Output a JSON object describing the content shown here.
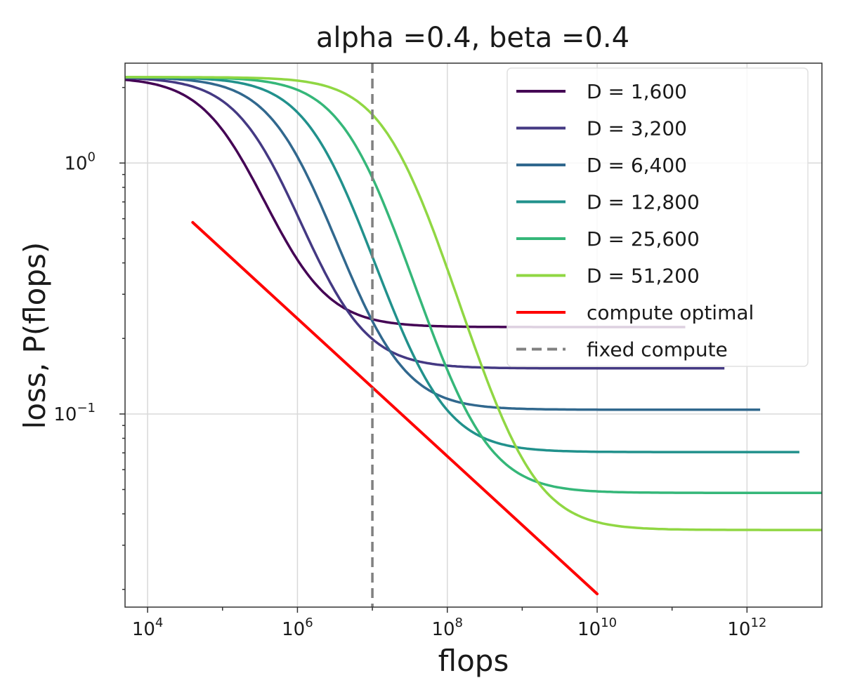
{
  "chart_data": {
    "type": "line",
    "title": "alpha =0.4, beta =0.4",
    "xlabel": "flops",
    "ylabel": "loss, P(flops)",
    "xscale": "log",
    "yscale": "log",
    "xlim": [
      5000,
      10000000000000
    ],
    "ylim": [
      0.017,
      2.5
    ],
    "x_tick_labels": [
      {
        "exp": "4",
        "value": 10000
      },
      {
        "exp": "6",
        "value": 1000000
      },
      {
        "exp": "8",
        "value": 100000000
      },
      {
        "exp": "10",
        "value": 10000000000
      },
      {
        "exp": "12",
        "value": 1000000000000
      }
    ],
    "y_tick_labels": [
      {
        "exp": "0",
        "value": 1
      },
      {
        "exp": "−1",
        "value": 0.1
      }
    ],
    "grid": true,
    "legend_position": "top-right",
    "series": [
      {
        "name": "D = 1,600",
        "color": "#440154",
        "x_start": 5000,
        "x_end": 150000000000,
        "plateau_high": 2.2,
        "plateau_low": 0.222,
        "transition_center": 130000,
        "width": 1.1
      },
      {
        "name": "D = 3,200",
        "color": "#443983",
        "x_start": 5000,
        "x_end": 500000000000,
        "plateau_high": 2.2,
        "plateau_low": 0.152,
        "transition_center": 330000,
        "width": 1.1
      },
      {
        "name": "D = 6,400",
        "color": "#31688e",
        "x_start": 5000,
        "x_end": 1500000000000,
        "plateau_high": 2.2,
        "plateau_low": 0.104,
        "transition_center": 850000,
        "width": 1.1
      },
      {
        "name": "D = 12,800",
        "color": "#21918c",
        "x_start": 5000,
        "x_end": 5000000000000,
        "plateau_high": 2.2,
        "plateau_low": 0.0705,
        "transition_center": 2300000,
        "width": 1.1
      },
      {
        "name": "D = 25,600",
        "color": "#35b779",
        "x_start": 5000,
        "x_end": 15000000000000,
        "plateau_high": 2.2,
        "plateau_low": 0.0485,
        "transition_center": 6500000,
        "width": 1.1
      },
      {
        "name": "D = 51,200",
        "color": "#90d743",
        "x_start": 5000,
        "x_end": 50000000000000,
        "plateau_high": 2.2,
        "plateau_low": 0.0345,
        "transition_center": 22000000,
        "width": 1.1
      },
      {
        "name": "compute optimal",
        "color": "#ff0000",
        "x": [
          40000,
          10000000000
        ],
        "y": [
          0.58,
          0.0192
        ]
      },
      {
        "name": "fixed compute",
        "color": "#808080",
        "dashed": true,
        "x_value": 10000000
      }
    ]
  }
}
